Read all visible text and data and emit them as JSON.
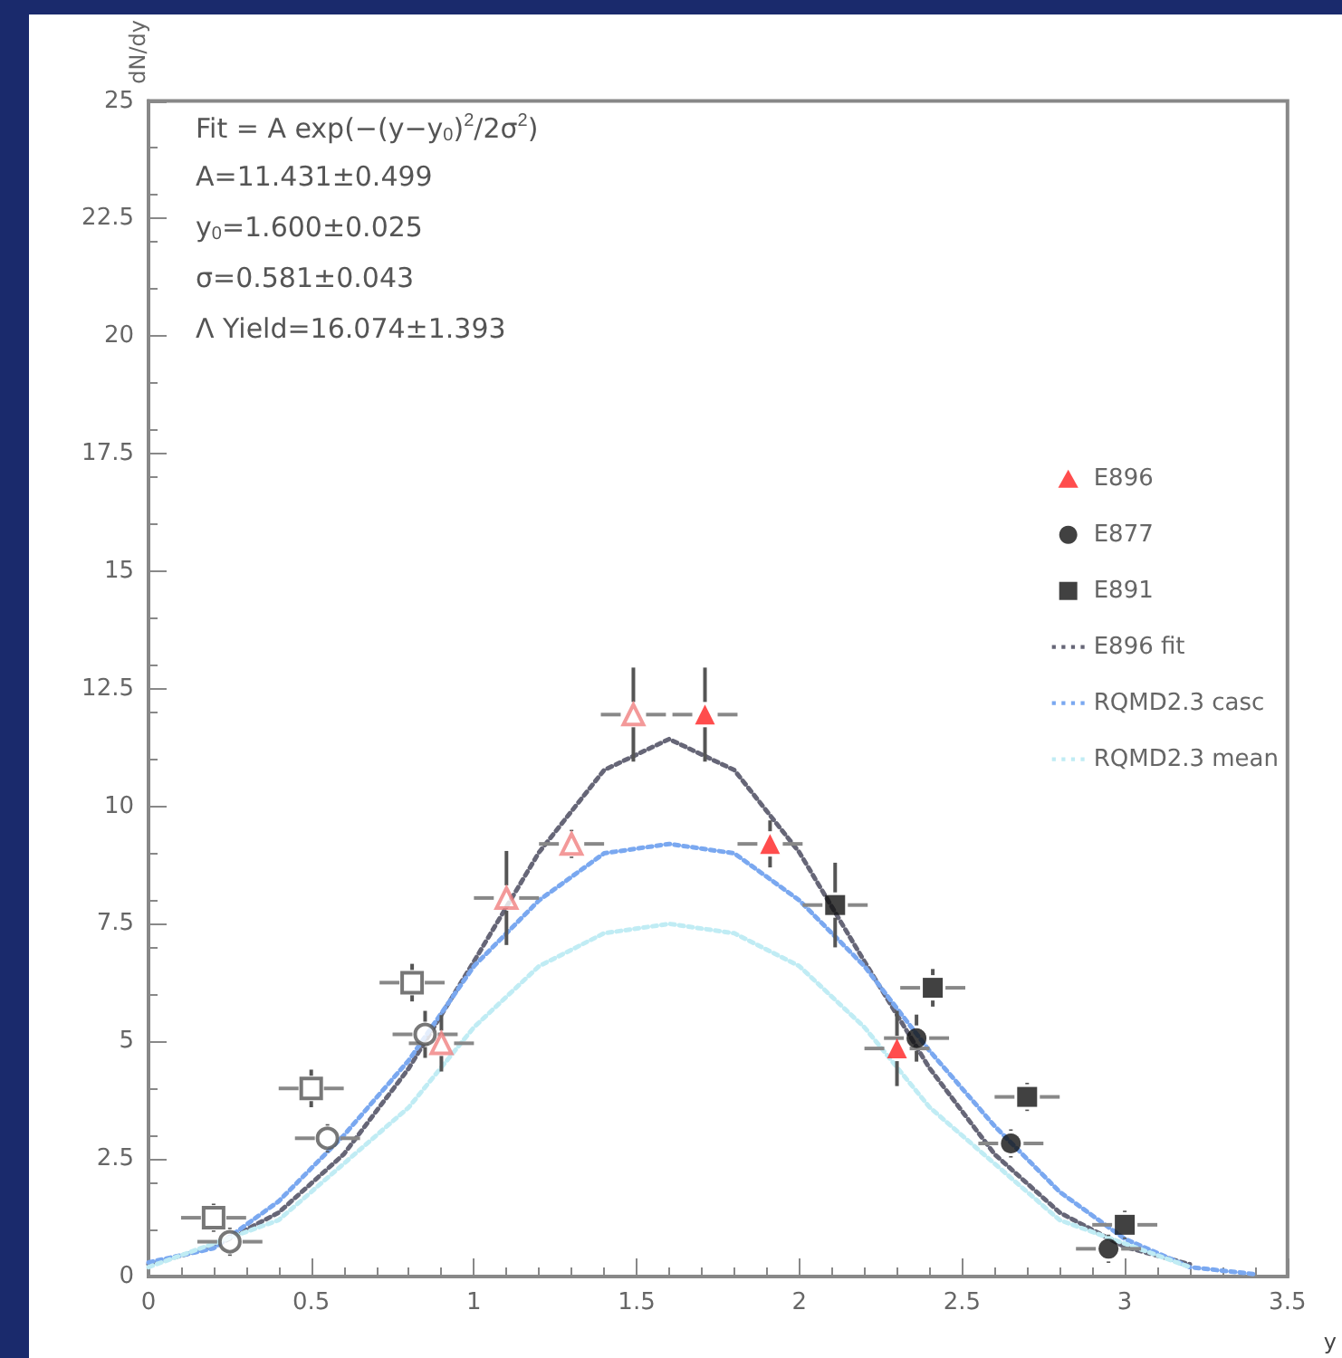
{
  "chart_data": {
    "type": "scatter",
    "xlabel": "y",
    "ylabel": "dN/dy",
    "xlim": [
      0,
      3.5
    ],
    "ylim": [
      0,
      25
    ],
    "xticks": [
      0,
      0.5,
      1,
      1.5,
      2,
      2.5,
      3,
      3.5
    ],
    "yticks": [
      0,
      2.5,
      5,
      7.5,
      10,
      12.5,
      15,
      17.5,
      20,
      22.5,
      25
    ],
    "grid": false,
    "legend": "right",
    "annotations": [
      "Fit = A exp(−(y−y$_{0}$)$^{2}$/2σ$^{2}$)",
      "A=11.431±0.499",
      "y$_{0}$=1.600±0.025",
      "σ=0.581±0.043",
      "Λ Yield=16.074±1.393"
    ],
    "series": [
      {
        "name": "E896",
        "marker": "triangle",
        "color": "#ff2020",
        "x": [
          1.71,
          1.91,
          2.3
        ],
        "values": [
          11.95,
          9.2,
          4.85
        ],
        "errors": [
          1.0,
          0.5,
          0.8
        ],
        "xerrors": [
          0.1,
          0.1,
          0.1
        ]
      },
      {
        "name": "E877",
        "marker": "circle",
        "color": "#111111",
        "x": [
          2.36,
          2.65,
          2.95
        ],
        "values": [
          5.07,
          2.83,
          0.59
        ],
        "errors": [
          0.5,
          0.3,
          0.3
        ],
        "xerrors": [
          0.1,
          0.1,
          0.1
        ]
      },
      {
        "name": "E891",
        "marker": "square",
        "color": "#111111",
        "x": [
          2.11,
          2.41,
          2.7,
          3.0
        ],
        "values": [
          7.9,
          6.14,
          3.82,
          1.1
        ],
        "errors": [
          0.9,
          0.4,
          0.3,
          0.3
        ],
        "xerrors": [
          0.1,
          0.1,
          0.1,
          0.1
        ]
      },
      {
        "marker": "triangle",
        "color": "#f08080",
        "x": [
          1.1,
          1.3,
          1.49,
          0.9
        ],
        "values": [
          8.05,
          9.2,
          11.95,
          4.96
        ],
        "errors": [
          1.0,
          0.3,
          1.0,
          0.6
        ],
        "xerrors": [
          0.1,
          0.1,
          0.1,
          0.1
        ]
      },
      {
        "marker": "circle",
        "color": "#555555",
        "x": [
          0.85,
          0.55,
          0.25
        ],
        "values": [
          5.15,
          2.94,
          0.74
        ],
        "errors": [
          0.5,
          0.3,
          0.3
        ],
        "xerrors": [
          0.1,
          0.1,
          0.1
        ]
      },
      {
        "marker": "square",
        "color": "#555555",
        "x": [
          0.81,
          0.5,
          0.2
        ],
        "values": [
          6.25,
          4.0,
          1.25
        ],
        "errors": [
          0.4,
          0.4,
          0.3
        ],
        "xerrors": [
          0.1,
          0.1,
          0.1
        ]
      },
      {
        "name": "E896 fit",
        "type": "line",
        "marker": "none",
        "line_style": "dotted",
        "color": "#666677",
        "x": [
          0,
          0.2,
          0.4,
          0.6,
          0.8,
          1.0,
          1.2,
          1.4,
          1.6,
          1.8,
          2.0,
          2.2,
          2.4,
          2.6,
          2.8,
          3.0,
          3.2
        ],
        "values": [
          0.26,
          0.63,
          1.36,
          2.6,
          4.43,
          6.7,
          9.02,
          10.77,
          11.43,
          10.77,
          9.02,
          6.7,
          4.43,
          2.6,
          1.36,
          0.63,
          0.26
        ]
      },
      {
        "name": "RQMD2.3 casc",
        "type": "line",
        "marker": "none",
        "line_style": "dotted",
        "color": "#7aa8f0",
        "x": [
          0,
          0.2,
          0.4,
          0.6,
          0.8,
          1.0,
          1.2,
          1.4,
          1.6,
          1.8,
          2.0,
          2.2,
          2.4,
          2.6,
          2.8,
          3.0,
          3.2,
          3.4
        ],
        "values": [
          0.3,
          0.6,
          1.6,
          3.0,
          4.6,
          6.6,
          8.0,
          9.0,
          9.2,
          9.0,
          8.0,
          6.6,
          4.8,
          3.2,
          1.8,
          0.8,
          0.2,
          0.05
        ]
      },
      {
        "name": "RQMD2.3 mean",
        "type": "line",
        "marker": "none",
        "line_style": "dotted",
        "color": "#c0ecf4",
        "x": [
          0,
          0.4,
          0.8,
          1.0,
          1.2,
          1.4,
          1.6,
          1.8,
          2.0,
          2.2,
          2.4,
          2.8,
          3.2
        ],
        "values": [
          0.2,
          1.2,
          3.6,
          5.3,
          6.6,
          7.3,
          7.5,
          7.3,
          6.6,
          5.3,
          3.6,
          1.2,
          0.2
        ]
      }
    ]
  }
}
